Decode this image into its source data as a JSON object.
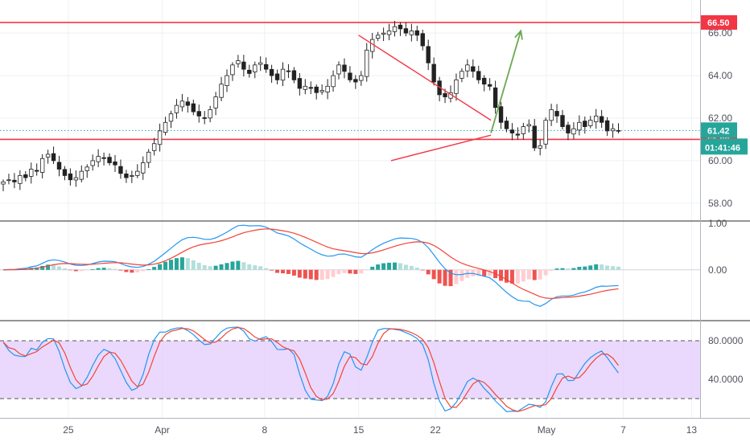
{
  "chart_data": [
    {
      "type": "candlestick",
      "panel": "price",
      "ylim": [
        57.2,
        66.8
      ],
      "y_ticks": [
        {
          "value": 58,
          "label": "58.00"
        },
        {
          "value": 60,
          "label": "60.00"
        },
        {
          "value": 62,
          "label": "62.00"
        },
        {
          "value": 64,
          "label": "64.00"
        },
        {
          "value": 66,
          "label": "66.00"
        }
      ],
      "horizontal_levels": [
        {
          "value": 66.5,
          "label": "66.50",
          "color": "#f23645"
        },
        {
          "value": 61.0,
          "label": "61.00",
          "color": "#f23645"
        }
      ],
      "last_price": {
        "value": 61.42,
        "label": "61.42",
        "color": "#26a69a"
      },
      "countdown_label": "01:41:46",
      "trendlines": [
        {
          "from": {
            "x": 42,
            "y": 65.9
          },
          "to": {
            "x": 57.5,
            "y": 61.9
          },
          "color": "#f23645"
        },
        {
          "from": {
            "x": 45.8,
            "y": 60.0
          },
          "to": {
            "x": 57.5,
            "y": 61.2
          },
          "color": "#f23645"
        }
      ],
      "projection_arrow": {
        "from": {
          "x": 57.5,
          "y": 61.3
        },
        "to": {
          "x": 61,
          "y": 66.1
        },
        "color": "#6aa84f"
      },
      "close": [
        59.0,
        59.1,
        59.0,
        59.3,
        59.2,
        59.6,
        59.5,
        60.1,
        60.3,
        60.0,
        59.6,
        59.3,
        59.1,
        59.2,
        59.5,
        59.7,
        60.0,
        60.2,
        60.1,
        59.9,
        59.8,
        59.4,
        59.2,
        59.3,
        59.5,
        59.9,
        60.4,
        60.8,
        61.4,
        61.8,
        62.2,
        62.6,
        62.8,
        62.6,
        62.3,
        62.1,
        62.0,
        62.4,
        63.0,
        63.6,
        64.0,
        64.5,
        64.7,
        64.3,
        64.1,
        64.5,
        64.6,
        64.3,
        64.0,
        63.8,
        64.3,
        64.2,
        63.8,
        63.4,
        63.5,
        63.4,
        63.2,
        63.3,
        63.5,
        64.0,
        64.5,
        64.2,
        63.8,
        63.7,
        64.0,
        65.2,
        65.7,
        65.9,
        66.0,
        66.1,
        66.3,
        66.2,
        66.0,
        66.1,
        65.9,
        65.4,
        64.6,
        63.7,
        63.1,
        63.0,
        63.2,
        63.8,
        64.2,
        64.5,
        64.2,
        63.8,
        63.6,
        63.5,
        62.5,
        61.8,
        61.5,
        61.3,
        61.2,
        61.6,
        61.7,
        60.6,
        60.7,
        61.9,
        62.4,
        62.1,
        61.6,
        61.3,
        61.5,
        61.8,
        61.6,
        61.9,
        62.1,
        61.8,
        61.4,
        61.5,
        61.42
      ]
    },
    {
      "type": "macd",
      "panel": "macd",
      "ylim": [
        -1.25,
        1.2
      ],
      "y_ticks": [
        {
          "value": 0,
          "label": "0.00"
        }
      ],
      "top_tick_label": "1.00",
      "colors": {
        "macd": "#2196f3",
        "signal": "#f44336",
        "hist_pos": "#26a69a",
        "hist_neg": "#ef5350"
      }
    },
    {
      "type": "stochastic",
      "panel": "stoch",
      "ylim": [
        0,
        100
      ],
      "band": {
        "upper": 80,
        "lower": 20,
        "fill": "#e1c9fb"
      },
      "y_ticks": [
        {
          "value": 80,
          "label": "80.0000"
        },
        {
          "value": 40,
          "label": "40.0000"
        }
      ],
      "colors": {
        "k": "#2196f3",
        "d": "#f44336"
      }
    }
  ],
  "x_axis": {
    "min": 0,
    "max": 82,
    "ticks": [
      {
        "x": 8,
        "label": "25"
      },
      {
        "x": 19,
        "label": "Apr"
      },
      {
        "x": 31,
        "label": "8"
      },
      {
        "x": 42,
        "label": "15"
      },
      {
        "x": 51,
        "label": "22"
      },
      {
        "x": 64,
        "label": "May"
      },
      {
        "x": 73,
        "label": "7"
      },
      {
        "x": 81,
        "label": "13"
      }
    ]
  },
  "colors": {
    "up": "#26a69a",
    "down": "#ef5350",
    "candle": "#222222",
    "grid": "#eef0f3",
    "frame": "#b2b5be",
    "text": "#50535e",
    "dotted_price": "#26a69a"
  }
}
